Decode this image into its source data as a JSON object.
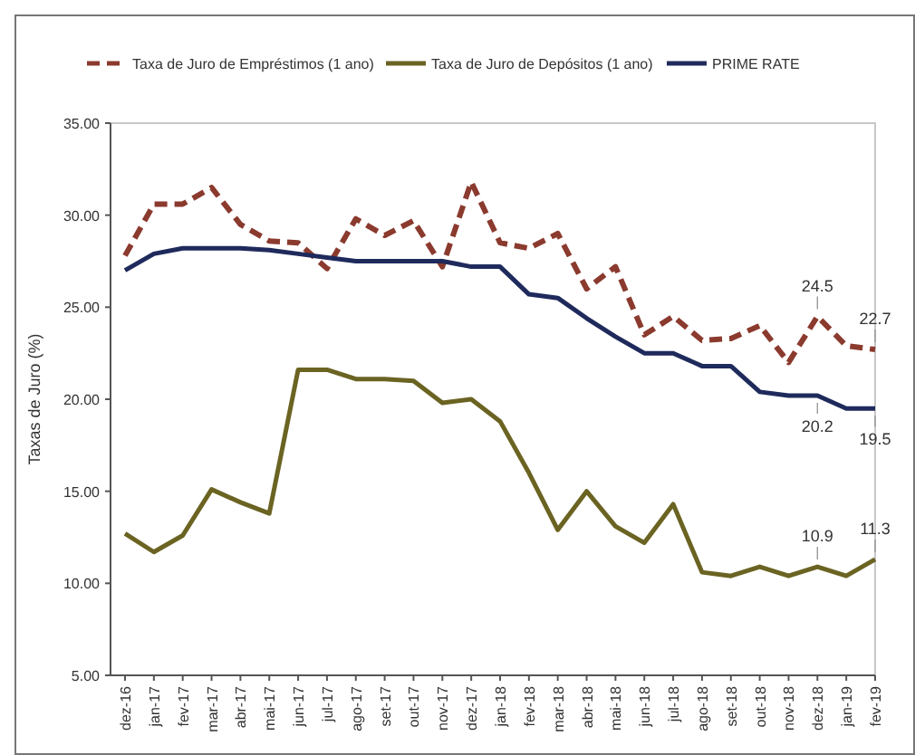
{
  "chart_data": {
    "type": "line",
    "ylabel": "Taxas de Juro (%)",
    "categories": [
      "dez-16",
      "jan-17",
      "fev-17",
      "mar-17",
      "abr-17",
      "mai-17",
      "jun-17",
      "jul-17",
      "ago-17",
      "set-17",
      "out-17",
      "nov-17",
      "dez-17",
      "jan-18",
      "fev-18",
      "mar-18",
      "abr-18",
      "mai-18",
      "jun-18",
      "jul-18",
      "ago-18",
      "set-18",
      "out-18",
      "nov-18",
      "dez-18",
      "jan-19",
      "fev-19"
    ],
    "series": [
      {
        "name": "Taxa de Juro de Empréstimos (1 ano)",
        "color": "#8b3a2e",
        "line_style": "dashed",
        "values": [
          27.8,
          30.6,
          30.6,
          31.5,
          29.5,
          28.6,
          28.5,
          27.1,
          29.8,
          28.9,
          29.7,
          27.2,
          31.8,
          28.5,
          28.2,
          29.0,
          26.0,
          27.2,
          23.5,
          24.5,
          23.2,
          23.3,
          24.0,
          22.0,
          24.5,
          22.9,
          22.7
        ],
        "value_labels": [
          null,
          null,
          null,
          null,
          null,
          null,
          null,
          null,
          null,
          null,
          null,
          null,
          null,
          null,
          null,
          null,
          null,
          null,
          null,
          null,
          null,
          null,
          null,
          null,
          "24.5",
          null,
          "22.7"
        ]
      },
      {
        "name": "Taxa de Juro de Depósitos (1 ano)",
        "color": "#6b6322",
        "line_style": "solid",
        "values": [
          12.7,
          11.7,
          12.6,
          15.1,
          14.4,
          13.8,
          21.6,
          21.6,
          21.1,
          21.1,
          21.0,
          19.8,
          20.0,
          18.8,
          16.0,
          12.9,
          15.0,
          13.1,
          12.2,
          14.3,
          10.6,
          10.4,
          10.9,
          10.4,
          10.9,
          10.4,
          11.3
        ],
        "value_labels": [
          null,
          null,
          null,
          null,
          null,
          null,
          null,
          null,
          null,
          null,
          null,
          null,
          null,
          null,
          null,
          null,
          null,
          null,
          null,
          null,
          null,
          null,
          null,
          null,
          "10.9",
          null,
          "11.3"
        ]
      },
      {
        "name": "PRIME RATE",
        "color": "#1f2a5c",
        "line_style": "solid",
        "values": [
          27.0,
          27.9,
          28.2,
          28.2,
          28.2,
          28.1,
          27.9,
          27.7,
          27.5,
          27.5,
          27.5,
          27.5,
          27.2,
          27.2,
          25.7,
          25.5,
          24.4,
          23.4,
          22.5,
          22.5,
          21.8,
          21.8,
          20.4,
          20.2,
          20.2,
          19.5,
          19.5
        ],
        "value_labels": [
          null,
          null,
          null,
          null,
          null,
          null,
          null,
          null,
          null,
          null,
          null,
          null,
          null,
          null,
          null,
          null,
          null,
          null,
          null,
          null,
          null,
          null,
          null,
          null,
          "20.2",
          null,
          "19.5"
        ]
      }
    ],
    "ylim": [
      5,
      35
    ],
    "yticks": [
      {
        "value": 5,
        "label": "5.00"
      },
      {
        "value": 10,
        "label": "10.00"
      },
      {
        "value": 15,
        "label": "15.00"
      },
      {
        "value": 20,
        "label": "20.00"
      },
      {
        "value": 25,
        "label": "25.00"
      },
      {
        "value": 30,
        "label": "30.00"
      },
      {
        "value": 35,
        "label": "35.00"
      }
    ],
    "legend": "top",
    "grid": false,
    "marker": "none"
  }
}
